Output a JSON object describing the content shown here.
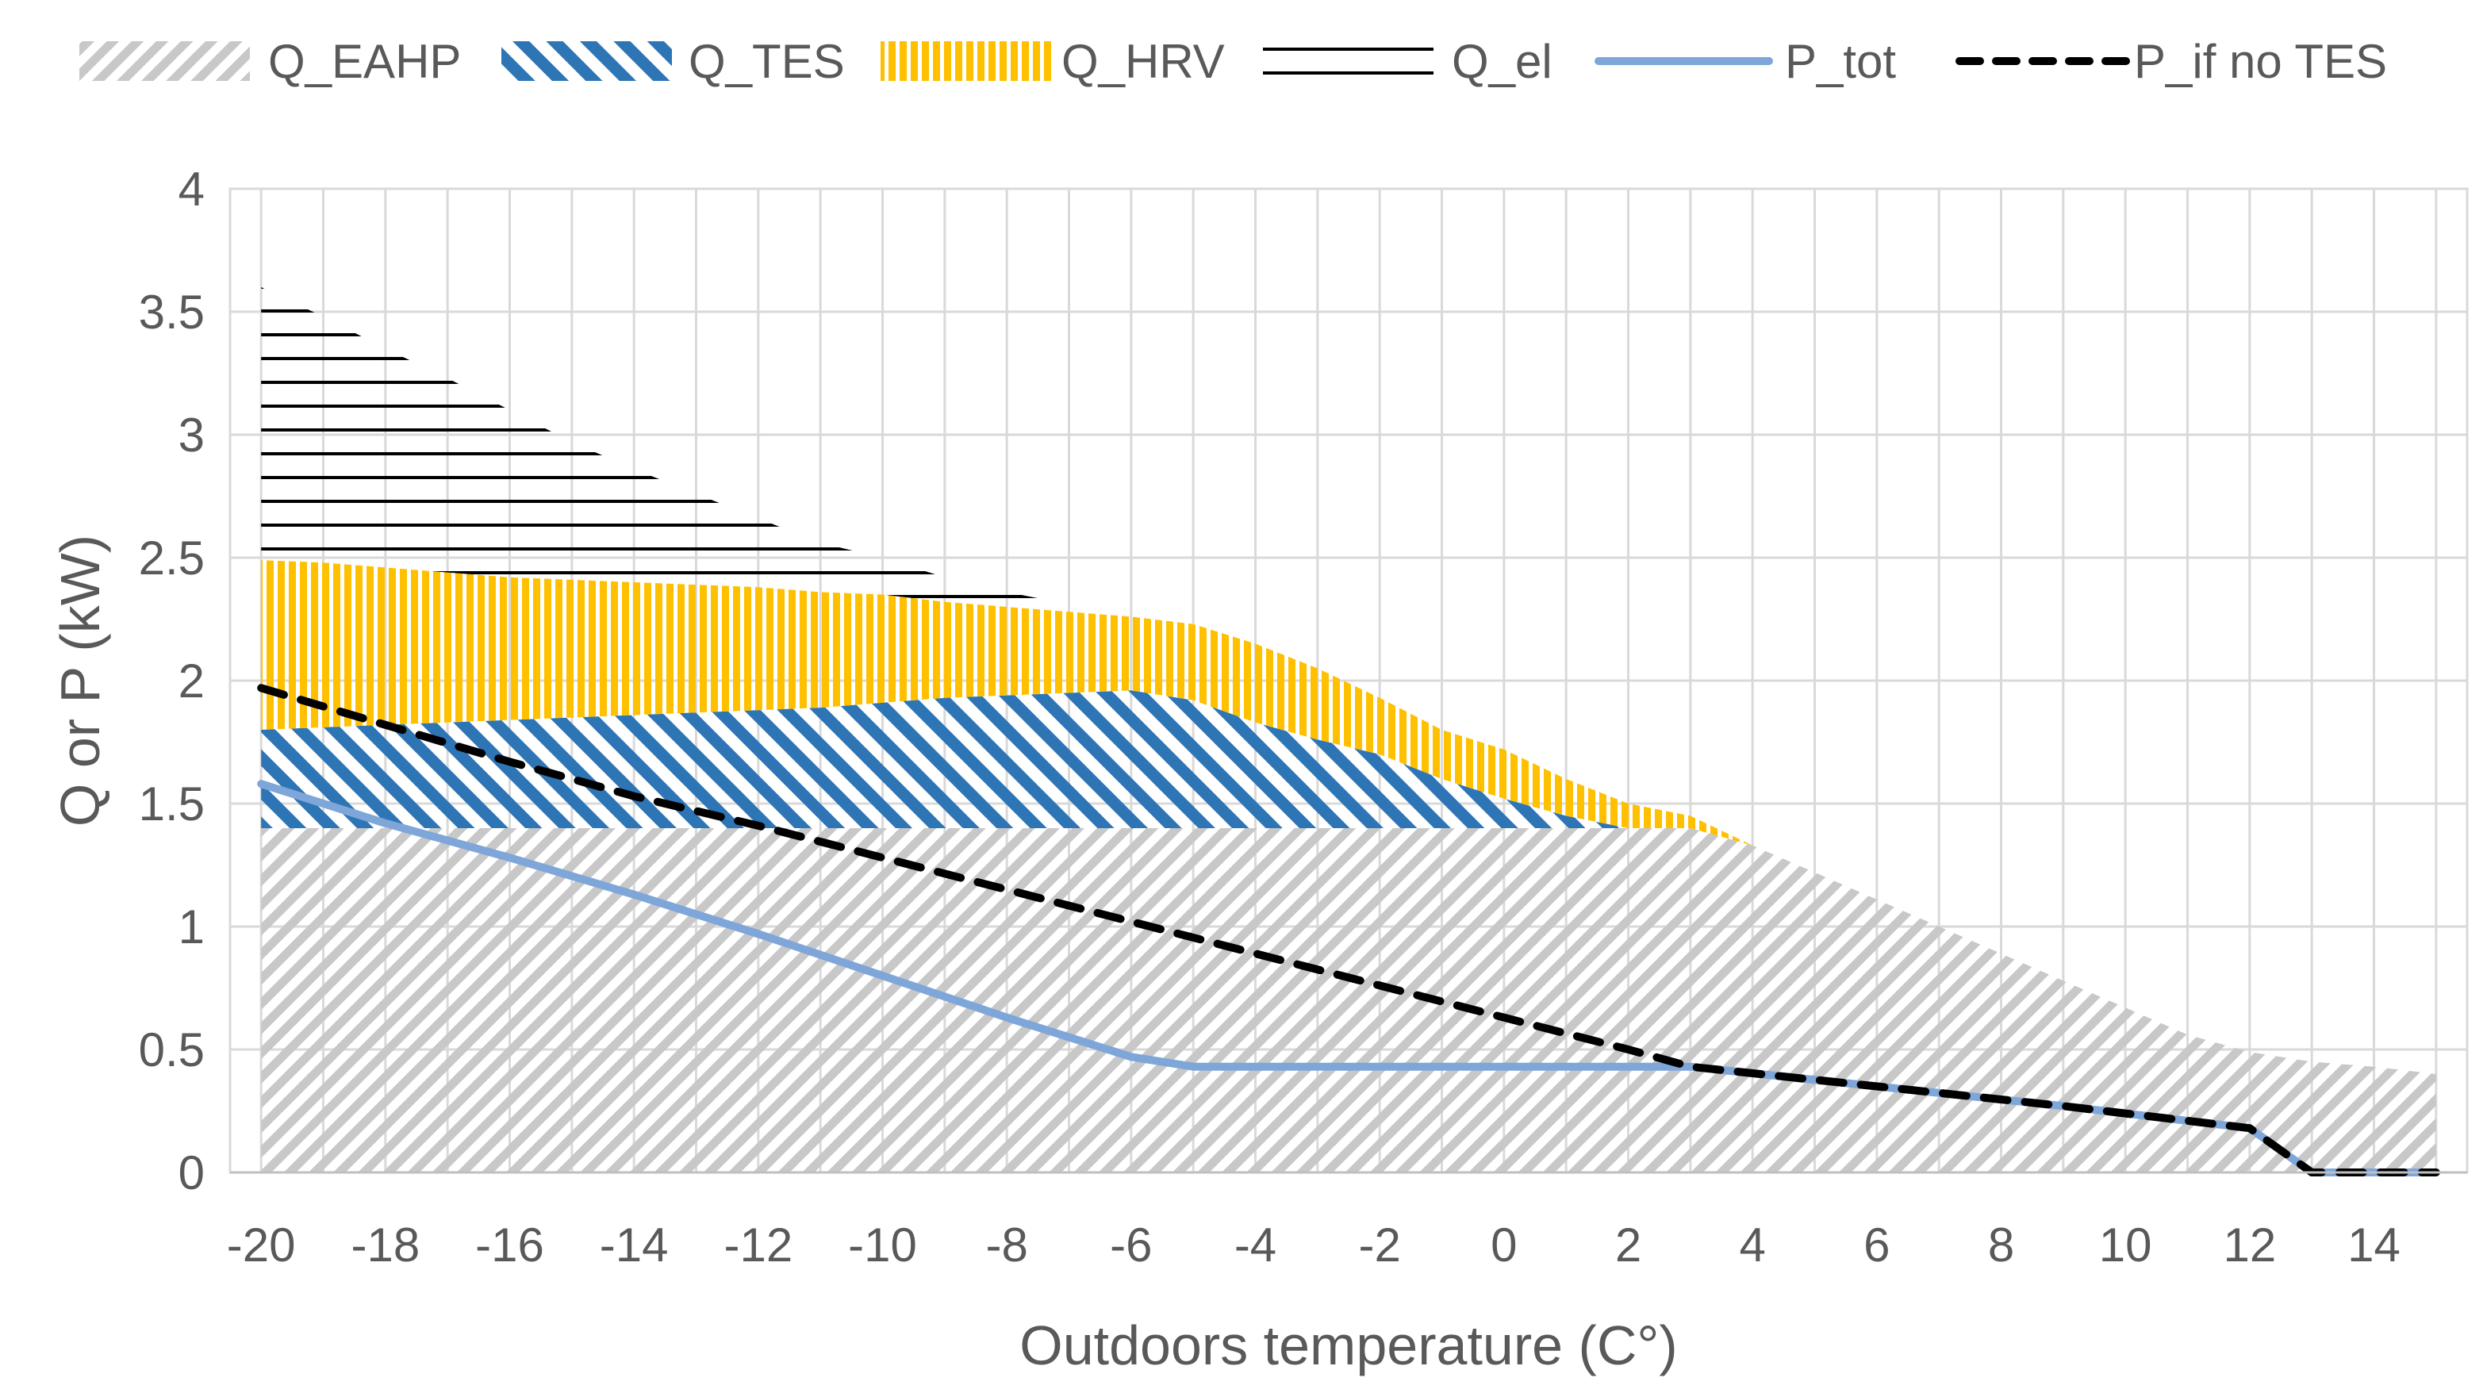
{
  "chart_data": {
    "type": "area",
    "title": "",
    "xlabel": "Outdoors temperature (C°)",
    "ylabel": "Q or P (kW)",
    "xlim": [
      -20.5,
      15.5
    ],
    "ylim": [
      0,
      4
    ],
    "grid": true,
    "legend_position": "top",
    "x_ticks": [
      "-20",
      "-18",
      "-16",
      "-14",
      "-12",
      "-10",
      "-8",
      "-6",
      "-4",
      "-2",
      "0",
      "2",
      "4",
      "6",
      "8",
      "10",
      "12",
      "14"
    ],
    "y_ticks": [
      "0",
      "0.5",
      "1",
      "1.5",
      "2",
      "2.5",
      "3",
      "3.5",
      "4"
    ],
    "x": [
      -20,
      -19,
      -18,
      -17,
      -16,
      -15,
      -14,
      -13,
      -12,
      -11,
      -10,
      -9,
      -8,
      -7,
      -6,
      -5,
      -4,
      -3,
      -2,
      -1,
      0,
      1,
      2,
      3,
      4,
      5,
      6,
      7,
      8,
      9,
      10,
      11,
      12,
      13,
      14,
      15
    ],
    "stacked_areas": [
      {
        "name": "Q_EAHP",
        "color": "#c8c8c8",
        "values": [
          1.4,
          1.4,
          1.4,
          1.4,
          1.4,
          1.4,
          1.4,
          1.4,
          1.4,
          1.4,
          1.4,
          1.4,
          1.4,
          1.4,
          1.4,
          1.4,
          1.4,
          1.4,
          1.4,
          1.4,
          1.4,
          1.4,
          1.4,
          1.4,
          1.33,
          1.22,
          1.11,
          1.0,
          0.89,
          0.78,
          0.67,
          0.56,
          0.49,
          0.45,
          0.43,
          0.4
        ]
      },
      {
        "name": "Q_TES",
        "color": "#2e75b6",
        "values": [
          0.4,
          0.41,
          0.42,
          0.43,
          0.44,
          0.45,
          0.46,
          0.47,
          0.48,
          0.49,
          0.51,
          0.53,
          0.54,
          0.55,
          0.56,
          0.52,
          0.43,
          0.36,
          0.3,
          0.2,
          0.12,
          0.05,
          0.0,
          0.0,
          0.0,
          0.0,
          0.0,
          0.0,
          0.0,
          0.0,
          0.0,
          0.0,
          0.0,
          0.0,
          0.0,
          0.0
        ]
      },
      {
        "name": "Q_HRV",
        "color": "#ffc000",
        "values": [
          0.69,
          0.67,
          0.64,
          0.61,
          0.58,
          0.56,
          0.54,
          0.52,
          0.5,
          0.47,
          0.44,
          0.39,
          0.36,
          0.33,
          0.3,
          0.31,
          0.32,
          0.29,
          0.23,
          0.2,
          0.2,
          0.15,
          0.1,
          0.05,
          0.0,
          0.0,
          0.0,
          0.0,
          0.0,
          0.0,
          0.0,
          0.0,
          0.0,
          0.0,
          0.0,
          0.0
        ]
      },
      {
        "name": "Q_el",
        "color": "#000000",
        "values": [
          1.11,
          1.0,
          0.89,
          0.79,
          0.68,
          0.56,
          0.46,
          0.37,
          0.28,
          0.2,
          0.15,
          0.1,
          0.06,
          0.03,
          0.0,
          0.0,
          0.0,
          0.0,
          0.0,
          0.0,
          0.0,
          0.0,
          0.0,
          0.0,
          0.0,
          0.0,
          0.0,
          0.0,
          0.0,
          0.0,
          0.0,
          0.0,
          0.0,
          0.0,
          0.0,
          0.0
        ]
      }
    ],
    "lines": [
      {
        "name": "P_tot",
        "color": "#7ea6d9",
        "style": "solid",
        "x": [
          -20,
          -18,
          -16,
          -14,
          -12,
          -10,
          -8,
          -6,
          -5,
          -4,
          -2,
          0,
          3,
          6,
          9,
          12,
          13,
          15
        ],
        "values": [
          1.58,
          1.42,
          1.28,
          1.13,
          0.97,
          0.8,
          0.63,
          0.47,
          0.43,
          0.43,
          0.43,
          0.43,
          0.43,
          0.35,
          0.27,
          0.18,
          0.0,
          0.0
        ]
      },
      {
        "name": "P_if no TES",
        "color": "#000000",
        "style": "dashed",
        "x": [
          -20,
          -18,
          -16,
          -14,
          -12,
          -10,
          -8,
          -6,
          -4,
          -2,
          0,
          2,
          3,
          6,
          9,
          12,
          13,
          15
        ],
        "values": [
          1.97,
          1.82,
          1.67,
          1.53,
          1.41,
          1.28,
          1.15,
          1.02,
          0.89,
          0.76,
          0.63,
          0.5,
          0.43,
          0.35,
          0.27,
          0.18,
          0.0,
          0.0
        ]
      }
    ]
  },
  "legend": [
    {
      "label": "Q_EAHP",
      "kind": "hatch-gray"
    },
    {
      "label": "Q_TES",
      "kind": "hatch-blue"
    },
    {
      "label": "Q_HRV",
      "kind": "hatch-yellow"
    },
    {
      "label": "Q_el",
      "kind": "hatch-black"
    },
    {
      "label": "P_tot",
      "kind": "line-solid"
    },
    {
      "label": "P_if no TES",
      "kind": "line-dashed"
    }
  ]
}
